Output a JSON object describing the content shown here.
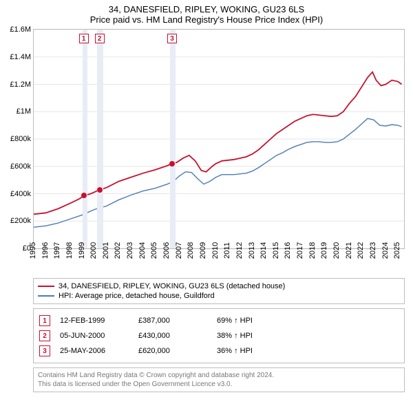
{
  "title": {
    "main": "34, DANESFIELD, RIPLEY, WOKING, GU23 6LS",
    "sub": "Price paid vs. HM Land Registry's House Price Index (HPI)"
  },
  "chart": {
    "type": "line",
    "background_color": "#ffffff",
    "grid_color": "#e5e5e5",
    "border_color": "#bdbdbd",
    "font_size_axis": 11,
    "x_range": [
      1995,
      2025.5
    ],
    "x_ticks": [
      1995,
      1996,
      1997,
      1998,
      1999,
      2000,
      2001,
      2002,
      2003,
      2004,
      2005,
      2006,
      2007,
      2008,
      2009,
      2010,
      2011,
      2012,
      2013,
      2014,
      2015,
      2016,
      2017,
      2018,
      2019,
      2020,
      2021,
      2022,
      2023,
      2024,
      2025
    ],
    "y_range": [
      0,
      1600000
    ],
    "y_ticks": [
      {
        "v": 0,
        "label": "£0"
      },
      {
        "v": 200000,
        "label": "£200k"
      },
      {
        "v": 400000,
        "label": "£400k"
      },
      {
        "v": 600000,
        "label": "£600k"
      },
      {
        "v": 800000,
        "label": "£800k"
      },
      {
        "v": 1000000,
        "label": "£1M"
      },
      {
        "v": 1200000,
        "label": "£1.2M"
      },
      {
        "v": 1400000,
        "label": "£1.4M"
      },
      {
        "v": 1600000,
        "label": "£1.6M"
      }
    ],
    "shade_bands": [
      {
        "from": 1999.0,
        "to": 1999.4
      },
      {
        "from": 2000.2,
        "to": 2000.7
      },
      {
        "from": 2006.2,
        "to": 2006.7
      }
    ],
    "series": [
      {
        "name": "34, DANESFIELD, RIPLEY, WOKING, GU23 6LS (detached house)",
        "color": "#c8102e",
        "width": 1.8,
        "points": [
          [
            1995.0,
            250000
          ],
          [
            1996.0,
            260000
          ],
          [
            1997.0,
            290000
          ],
          [
            1998.0,
            330000
          ],
          [
            1998.7,
            360000
          ],
          [
            1999.2,
            387000
          ],
          [
            1999.7,
            400000
          ],
          [
            2000.2,
            420000
          ],
          [
            2000.5,
            430000
          ],
          [
            2001.0,
            445000
          ],
          [
            2002.0,
            490000
          ],
          [
            2003.0,
            520000
          ],
          [
            2004.0,
            550000
          ],
          [
            2005.0,
            575000
          ],
          [
            2006.0,
            605000
          ],
          [
            2006.4,
            620000
          ],
          [
            2006.8,
            630000
          ],
          [
            2007.3,
            660000
          ],
          [
            2007.8,
            680000
          ],
          [
            2008.3,
            640000
          ],
          [
            2008.8,
            570000
          ],
          [
            2009.2,
            560000
          ],
          [
            2009.7,
            600000
          ],
          [
            2010.0,
            620000
          ],
          [
            2010.5,
            640000
          ],
          [
            2011.0,
            645000
          ],
          [
            2011.5,
            650000
          ],
          [
            2012.0,
            660000
          ],
          [
            2012.5,
            670000
          ],
          [
            2013.0,
            690000
          ],
          [
            2013.5,
            720000
          ],
          [
            2014.0,
            760000
          ],
          [
            2014.5,
            800000
          ],
          [
            2015.0,
            840000
          ],
          [
            2015.5,
            870000
          ],
          [
            2016.0,
            900000
          ],
          [
            2016.5,
            930000
          ],
          [
            2017.0,
            950000
          ],
          [
            2017.5,
            970000
          ],
          [
            2018.0,
            980000
          ],
          [
            2018.5,
            975000
          ],
          [
            2019.0,
            970000
          ],
          [
            2019.5,
            965000
          ],
          [
            2020.0,
            970000
          ],
          [
            2020.5,
            1000000
          ],
          [
            2021.0,
            1060000
          ],
          [
            2021.5,
            1110000
          ],
          [
            2022.0,
            1180000
          ],
          [
            2022.5,
            1250000
          ],
          [
            2022.9,
            1290000
          ],
          [
            2023.2,
            1230000
          ],
          [
            2023.6,
            1190000
          ],
          [
            2024.0,
            1200000
          ],
          [
            2024.5,
            1230000
          ],
          [
            2025.0,
            1220000
          ],
          [
            2025.3,
            1200000
          ]
        ]
      },
      {
        "name": "HPI: Average price, detached house, Guildford",
        "color": "#4a7ab8",
        "width": 1.4,
        "points": [
          [
            1995.0,
            155000
          ],
          [
            1996.0,
            165000
          ],
          [
            1997.0,
            185000
          ],
          [
            1998.0,
            215000
          ],
          [
            1999.0,
            245000
          ],
          [
            2000.0,
            285000
          ],
          [
            2001.0,
            310000
          ],
          [
            2002.0,
            355000
          ],
          [
            2003.0,
            390000
          ],
          [
            2004.0,
            420000
          ],
          [
            2005.0,
            440000
          ],
          [
            2006.0,
            470000
          ],
          [
            2006.5,
            490000
          ],
          [
            2007.0,
            530000
          ],
          [
            2007.5,
            560000
          ],
          [
            2008.0,
            555000
          ],
          [
            2008.5,
            510000
          ],
          [
            2009.0,
            470000
          ],
          [
            2009.5,
            490000
          ],
          [
            2010.0,
            520000
          ],
          [
            2010.5,
            540000
          ],
          [
            2011.0,
            540000
          ],
          [
            2011.5,
            540000
          ],
          [
            2012.0,
            545000
          ],
          [
            2012.5,
            550000
          ],
          [
            2013.0,
            565000
          ],
          [
            2013.5,
            590000
          ],
          [
            2014.0,
            620000
          ],
          [
            2014.5,
            650000
          ],
          [
            2015.0,
            680000
          ],
          [
            2015.5,
            700000
          ],
          [
            2016.0,
            725000
          ],
          [
            2016.5,
            745000
          ],
          [
            2017.0,
            760000
          ],
          [
            2017.5,
            775000
          ],
          [
            2018.0,
            780000
          ],
          [
            2018.5,
            780000
          ],
          [
            2019.0,
            775000
          ],
          [
            2019.5,
            775000
          ],
          [
            2020.0,
            780000
          ],
          [
            2020.5,
            800000
          ],
          [
            2021.0,
            835000
          ],
          [
            2021.5,
            870000
          ],
          [
            2022.0,
            910000
          ],
          [
            2022.5,
            950000
          ],
          [
            2023.0,
            940000
          ],
          [
            2023.5,
            900000
          ],
          [
            2024.0,
            895000
          ],
          [
            2024.5,
            905000
          ],
          [
            2025.0,
            900000
          ],
          [
            2025.3,
            890000
          ]
        ]
      }
    ],
    "sale_markers": [
      {
        "n": "1",
        "x": 1999.12,
        "y": 387000,
        "color": "#c8102e"
      },
      {
        "n": "2",
        "x": 2000.42,
        "y": 430000,
        "color": "#c8102e"
      },
      {
        "n": "3",
        "x": 2006.4,
        "y": 620000,
        "color": "#c8102e"
      }
    ]
  },
  "legend": {
    "items": [
      {
        "color": "#c8102e",
        "label": "34, DANESFIELD, RIPLEY, WOKING, GU23 6LS (detached house)"
      },
      {
        "color": "#4a7ab8",
        "label": "HPI: Average price, detached house, Guildford"
      }
    ]
  },
  "sales": [
    {
      "n": "1",
      "date": "12-FEB-1999",
      "price": "£387,000",
      "hpi": "69% ↑ HPI",
      "color": "#c8102e"
    },
    {
      "n": "2",
      "date": "05-JUN-2000",
      "price": "£430,000",
      "hpi": "38% ↑ HPI",
      "color": "#c8102e"
    },
    {
      "n": "3",
      "date": "25-MAY-2006",
      "price": "£620,000",
      "hpi": "36% ↑ HPI",
      "color": "#c8102e"
    }
  ],
  "license": {
    "line1": "Contains HM Land Registry data © Crown copyright and database right 2024.",
    "line2": "This data is licensed under the Open Government Licence v3.0."
  }
}
